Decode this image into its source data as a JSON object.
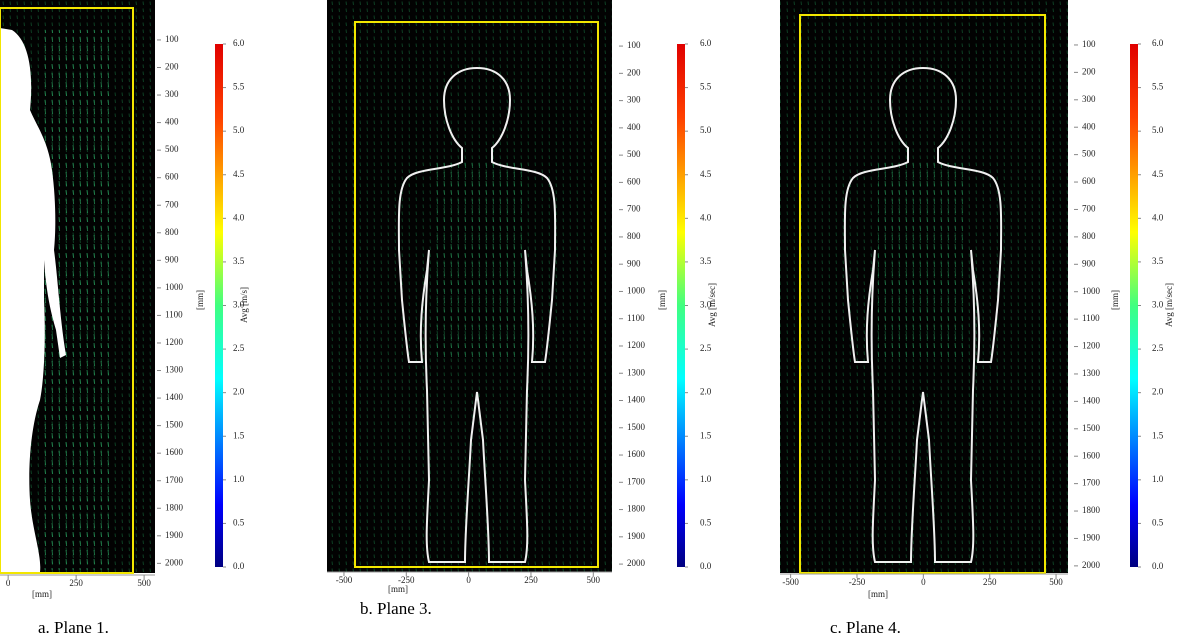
{
  "chart_data": [
    {
      "type": "vector-field",
      "caption": "a.  Plane 1.",
      "xlabel": "[mm]",
      "ylabel": "[mm]",
      "xlim": [
        -30,
        540
      ],
      "xticks": [
        0,
        250,
        500
      ],
      "ylim": [
        -45,
        2035
      ],
      "yticks": [
        100,
        200,
        300,
        400,
        500,
        600,
        700,
        800,
        900,
        1000,
        1100,
        1200,
        1300,
        1400,
        1500,
        1600,
        1700,
        1800,
        1900,
        2000
      ],
      "colorbar_label": "Avg [m/s]",
      "clim": [
        0,
        6
      ],
      "cticks": [
        {
          "value": 0,
          "label": "0.0"
        },
        0.5,
        {
          "value": 1,
          "label": "1.0"
        },
        1.5,
        {
          "value": 2,
          "label": "2.0"
        },
        2.5,
        {
          "value": 3,
          "label": "3.0"
        },
        3.5,
        {
          "value": 4,
          "label": "4.0"
        },
        4.5,
        {
          "value": 5,
          "label": "5.0"
        },
        5.5,
        {
          "value": 6,
          "label": "6.0"
        }
      ]
    },
    {
      "type": "vector-field",
      "caption": "b.  Plane 3.",
      "xlabel": "[mm]",
      "ylabel": "[mm]",
      "xlim": [
        -568,
        575
      ],
      "xticks": [
        -500,
        -250,
        0,
        250,
        500
      ],
      "ylim": [
        -69,
        2029
      ],
      "yticks": [
        100,
        200,
        300,
        400,
        500,
        600,
        700,
        800,
        900,
        1000,
        1100,
        1200,
        1300,
        1400,
        1500,
        1600,
        1700,
        1800,
        1900,
        2000
      ],
      "colorbar_label": "Avg [m/sec]",
      "clim": [
        0,
        6
      ],
      "cticks": [
        {
          "value": 0,
          "label": "0.0"
        },
        0.5,
        {
          "value": 1,
          "label": "1.0"
        },
        1.5,
        {
          "value": 2,
          "label": "2.0"
        },
        2.5,
        {
          "value": 3,
          "label": "3.0"
        },
        3.5,
        {
          "value": 4,
          "label": "4.0"
        },
        4.5,
        {
          "value": 5,
          "label": "5.0"
        },
        5.5,
        {
          "value": 6,
          "label": "6.0"
        }
      ]
    },
    {
      "type": "vector-field",
      "caption": "c.  Plane 4.",
      "xlabel": "[mm]",
      "ylabel": "[mm]",
      "xlim": [
        -540,
        545
      ],
      "xticks": [
        -500,
        -250,
        0,
        250,
        500
      ],
      "ylim": [
        -64,
        2026
      ],
      "yticks": [
        100,
        200,
        300,
        400,
        500,
        600,
        700,
        800,
        900,
        1000,
        1100,
        1200,
        1300,
        1400,
        1500,
        1600,
        1700,
        1800,
        1900,
        2000
      ],
      "colorbar_label": "Avg [m/sec]",
      "clim": [
        0,
        6
      ],
      "cticks": [
        {
          "value": 0,
          "label": "0.0"
        },
        0.5,
        {
          "value": 1,
          "label": "1.0"
        },
        1.5,
        {
          "value": 2,
          "label": "2.0"
        },
        2.5,
        {
          "value": 3,
          "label": "3.0"
        },
        3.5,
        {
          "value": 4,
          "label": "4.0"
        },
        4.5,
        {
          "value": 5,
          "label": "5.0"
        },
        5.5,
        {
          "value": 6,
          "label": "6.0"
        }
      ]
    }
  ]
}
